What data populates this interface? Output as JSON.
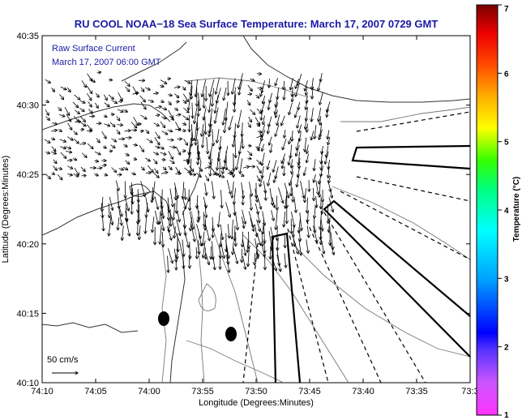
{
  "title": "RU COOL  NOAA−18  Sea Surface Temperature:  March 17, 2007 0729 GMT",
  "legend": {
    "line1": "Raw Surface Current",
    "line2": "March 17, 2007 06:00 GMT"
  },
  "scale_label": "50 cm/s",
  "axes": {
    "xlabel": "Longitude (Degrees:Minutes)",
    "ylabel": "Latitude (Degrees:Minutes)",
    "xticks": [
      "74:10",
      "74:05",
      "74:00",
      "73:55",
      "73:50",
      "73:45",
      "73:40",
      "73:35",
      "73:3"
    ],
    "yticks": [
      "40:35",
      "40:30",
      "40:25",
      "40:20",
      "40:15",
      "40:10"
    ]
  },
  "colorbar": {
    "label": "Temperature (°C)",
    "min": 1,
    "max": 7,
    "ticks": [
      "7",
      "6",
      "5",
      "4",
      "3",
      "2",
      "1"
    ]
  },
  "colors": {
    "title": "#1a1aa6",
    "legend": "#1a1aa6",
    "land_outline": "#555555",
    "arrows": "#000000"
  }
}
